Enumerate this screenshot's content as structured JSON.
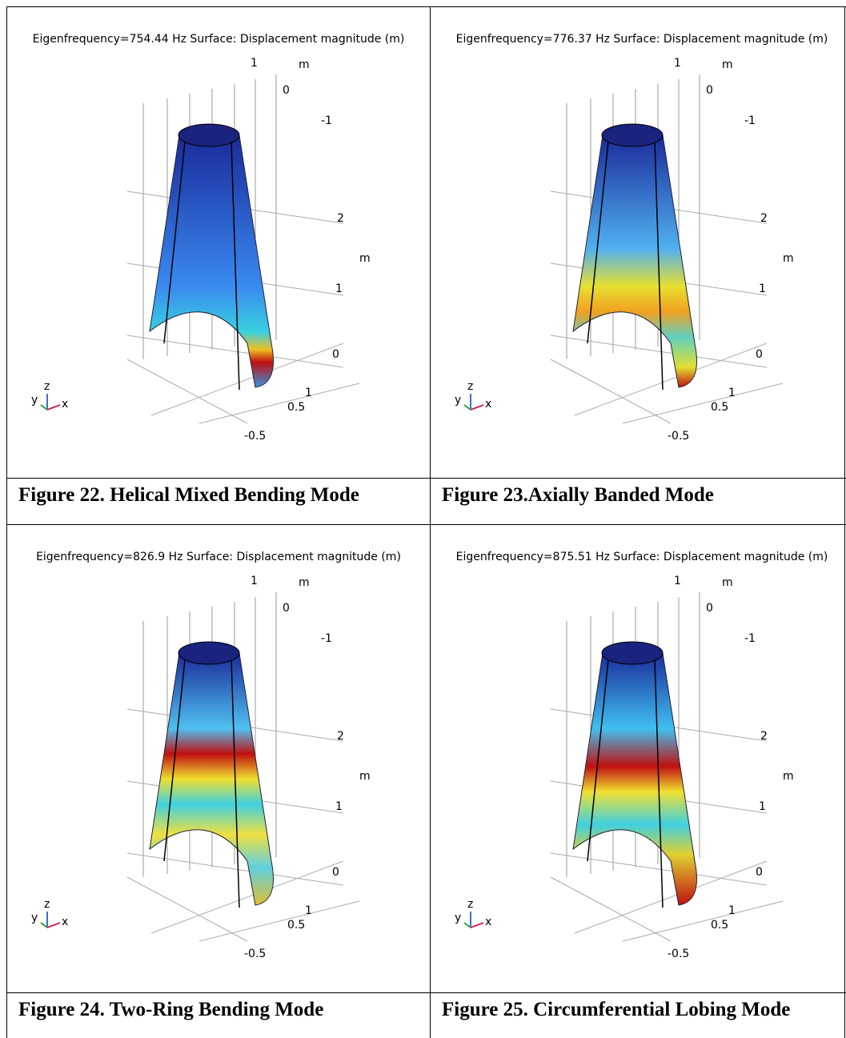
{
  "table": {
    "cells": [
      {
        "plot_title": "Eigenfrequency=754.44 Hz  Surface: Displacement magnitude (m)",
        "axis_labels": [
          "1",
          "m",
          "0",
          "-1",
          "2",
          "m",
          "1",
          "0",
          "1",
          "0.5",
          "-0.5"
        ],
        "triad": [
          "y",
          "z",
          "x"
        ],
        "caption": "Figure 22. Helical Mixed Bending Mode"
      },
      {
        "plot_title": "Eigenfrequency=776.37 Hz  Surface: Displacement magnitude (m)",
        "axis_labels": [
          "1",
          "m",
          "0",
          "-1",
          "2",
          "m",
          "1",
          "0",
          "1",
          "0.5",
          "-0.5"
        ],
        "triad": [
          "y",
          "z",
          "x"
        ],
        "caption": "Figure 23.Axially Banded Mode"
      },
      {
        "plot_title": "Eigenfrequency=826.9 Hz  Surface: Displacement magnitude (m)",
        "axis_labels": [
          "1",
          "m",
          "0",
          "-1",
          "2",
          "m",
          "1",
          "0",
          "1",
          "0.5",
          "-0.5"
        ],
        "triad": [
          "y",
          "z",
          "x"
        ],
        "caption": "Figure 24. Two-Ring Bending Mode"
      },
      {
        "plot_title": "Eigenfrequency=875.51 Hz  Surface: Displacement magnitude (m)",
        "axis_labels": [
          "1",
          "m",
          "0",
          "-1",
          "2",
          "m",
          "1",
          "0",
          "1",
          "0.5",
          "-0.5"
        ],
        "triad": [
          "y",
          "z",
          "x"
        ],
        "caption": "Figure 25. Circumferential Lobing Mode"
      }
    ]
  }
}
